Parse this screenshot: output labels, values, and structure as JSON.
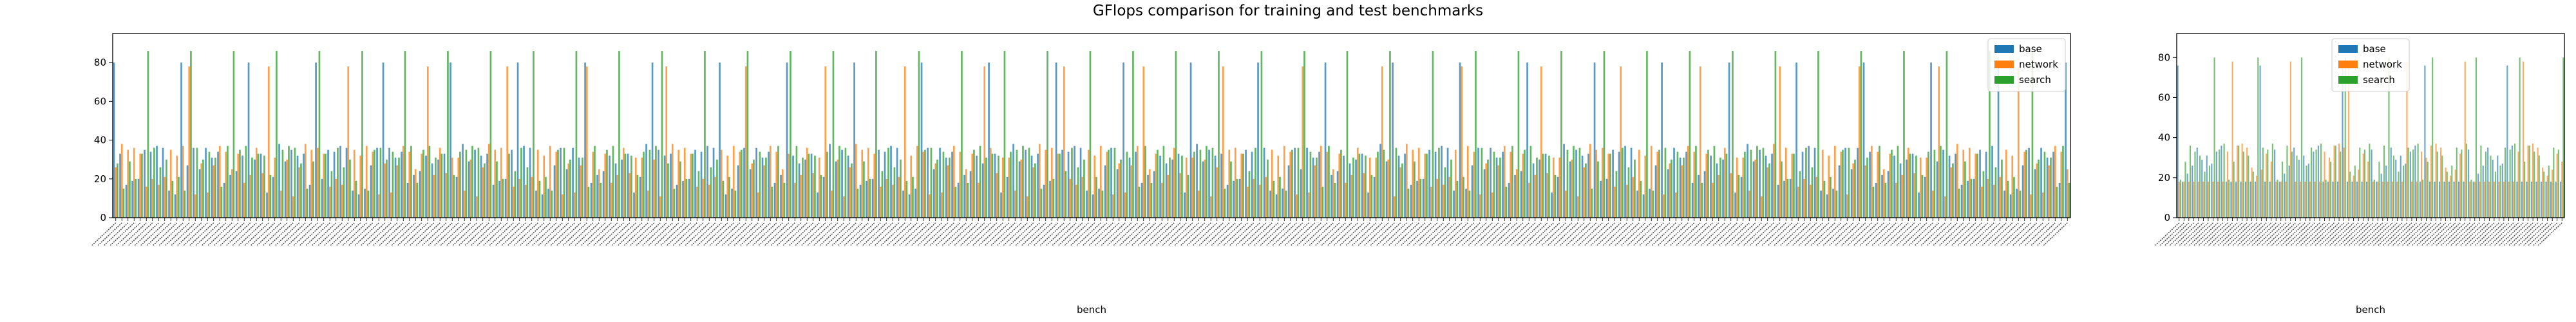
{
  "figure": {
    "title": "GFlops comparison for training and test benchmarks"
  },
  "colors": {
    "base": "#1f77b4",
    "network": "#ff7f0e",
    "search": "#2ca02c"
  },
  "chart_data": [
    {
      "type": "bar",
      "panel": "training",
      "xlabel": "bench",
      "ylabel": "",
      "ylim": [
        0,
        95
      ],
      "yticks": [
        0,
        20,
        40,
        60,
        80
      ],
      "legend_position": "top-right",
      "category_count": 320,
      "series": [
        {
          "name": "base",
          "pattern_values": [
            32,
            36,
            21,
            14,
            28,
            35,
            18,
            33,
            25,
            38,
            12,
            30,
            34,
            22,
            17,
            36,
            29,
            15,
            33,
            37,
            24,
            19,
            31,
            35,
            27,
            13,
            36,
            32,
            20,
            34
          ]
        },
        {
          "name": "network",
          "pattern_values": [
            18,
            33,
            37,
            26,
            12,
            31,
            35,
            22,
            16,
            34,
            38,
            28,
            14,
            32,
            36,
            20,
            25,
            35,
            13,
            30,
            37,
            23,
            17,
            33,
            36,
            27,
            11,
            34,
            31,
            21
          ]
        },
        {
          "name": "search",
          "pattern_values": [
            35,
            22,
            30,
            37,
            33,
            16,
            28,
            36,
            34,
            19,
            31,
            24,
            37,
            15,
            30,
            35,
            21,
            33,
            36,
            18,
            29,
            34,
            37,
            14,
            32,
            26,
            35,
            20,
            31,
            36
          ]
        }
      ],
      "spikes": [
        {
          "series": "search",
          "every": 7,
          "value": 86
        },
        {
          "series": "base",
          "every": 11,
          "value": 80
        },
        {
          "series": "network",
          "every": 13,
          "value": 78
        }
      ]
    },
    {
      "type": "bar",
      "panel": "test",
      "xlabel": "bench",
      "ylabel": "",
      "ylim": [
        0,
        92
      ],
      "yticks": [
        0,
        20,
        40,
        60,
        80
      ],
      "legend_position": "top-center",
      "category_count": 80,
      "series": [
        {
          "name": "base",
          "pattern_values": [
            34,
            26,
            31,
            36,
            22,
            29,
            33,
            18,
            35,
            27
          ]
        },
        {
          "name": "network",
          "pattern_values": [
            30,
            35,
            24,
            33,
            37,
            21,
            28,
            36,
            25,
            32
          ]
        },
        {
          "name": "search",
          "pattern_values": [
            36,
            23,
            34,
            28,
            31,
            35,
            19,
            33,
            26,
            37
          ]
        }
      ],
      "blocks": [
        {
          "dominant": "base",
          "floor": 18
        },
        {
          "dominant": "network",
          "floor": 18
        },
        {
          "dominant": "base",
          "floor": 18
        },
        {
          "dominant": "network",
          "floor": 18
        },
        {
          "dominant": "base",
          "floor": 18
        },
        {
          "dominant": "network",
          "floor": 18
        },
        {
          "dominant": "base",
          "floor": 18
        },
        {
          "dominant": "network",
          "floor": 18
        }
      ],
      "spikes": [
        {
          "series": "search",
          "every": 9,
          "value": 80
        },
        {
          "series": "network",
          "every": 12,
          "value": 78
        },
        {
          "series": "base",
          "every": 17,
          "value": 76
        }
      ]
    }
  ]
}
